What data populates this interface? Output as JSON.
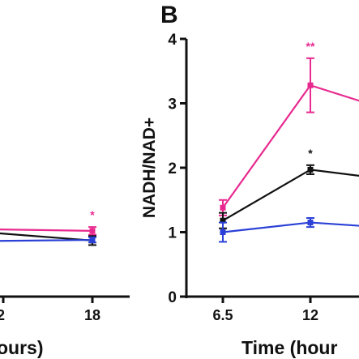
{
  "colors": {
    "magenta": "#e8298f",
    "black": "#111111",
    "blue": "#2a40d6",
    "axis": "#111111",
    "sig_text": "#e8298f"
  },
  "panel_a": {
    "xlabel_visible": "ours)",
    "chart_data": {
      "type": "line",
      "x_tick_labels": [
        "2",
        "18"
      ],
      "series": [
        {
          "color": "#e8298f",
          "points": [
            {
              "x": "2",
              "y": 1.05
            },
            {
              "x": "18",
              "y": 1.02,
              "err": 0.06
            }
          ],
          "significance": "*"
        },
        {
          "color": "#111111",
          "points": [
            {
              "x": "2",
              "y": 1.02
            },
            {
              "x": "18",
              "y": 0.87,
              "err": 0.07
            }
          ]
        },
        {
          "color": "#2a40d6",
          "points": [
            {
              "x": "2",
              "y": 0.86
            },
            {
              "x": "18",
              "y": 0.88,
              "err": 0.04
            }
          ]
        }
      ]
    }
  },
  "panel_b": {
    "panel_letter": "B",
    "ylabel": "NADH/NAD+",
    "xlabel_visible": "Time (hour",
    "chart_data": {
      "type": "line",
      "ylim": [
        0,
        4
      ],
      "y_ticks": [
        "0",
        "1",
        "2",
        "3",
        "4"
      ],
      "x_tick_labels": [
        "6.5",
        "12"
      ],
      "series": [
        {
          "color": "#e8298f",
          "points": [
            {
              "x": "6.5",
              "y": 1.38,
              "err": 0.12
            },
            {
              "x": "12",
              "y": 3.28,
              "err": 0.42,
              "significance": "**"
            },
            {
              "x": "offscreen",
              "y": 2.85
            }
          ]
        },
        {
          "color": "#111111",
          "points": [
            {
              "x": "6.5",
              "y": 1.18,
              "err": 0.12
            },
            {
              "x": "12",
              "y": 1.97,
              "err": 0.07,
              "significance": "*"
            },
            {
              "x": "offscreen",
              "y": 1.8
            }
          ]
        },
        {
          "color": "#2a40d6",
          "points": [
            {
              "x": "6.5",
              "y": 1.0,
              "err": 0.15
            },
            {
              "x": "12",
              "y": 1.15,
              "err": 0.07
            },
            {
              "x": "offscreen",
              "y": 1.06
            }
          ]
        }
      ]
    }
  }
}
